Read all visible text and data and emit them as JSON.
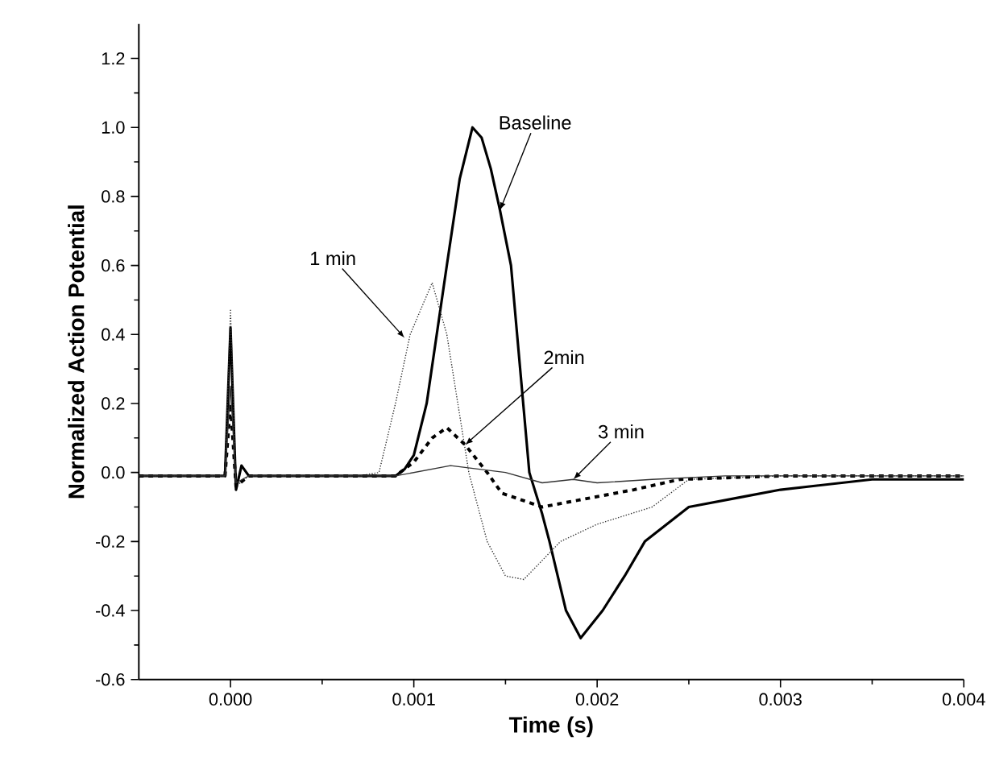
{
  "chart_data": {
    "type": "line",
    "xlabel": "Time (s)",
    "ylabel": "Normalized Action Potential",
    "xlim": [
      -0.0005,
      0.004
    ],
    "ylim": [
      -0.6,
      1.3
    ],
    "xticks": [
      {
        "value": 0,
        "label": "0.000"
      },
      {
        "value": 0.001,
        "label": "0.001"
      },
      {
        "value": 0.002,
        "label": "0.002"
      },
      {
        "value": 0.003,
        "label": "0.003"
      },
      {
        "value": 0.004,
        "label": "0.004"
      }
    ],
    "yticks": [
      -0.6,
      -0.4,
      -0.2,
      {
        "value": 0,
        "label": "0.0"
      },
      0.2,
      0.4,
      0.6,
      0.8,
      {
        "value": 1,
        "label": "1.0"
      },
      1.2
    ],
    "grid": false,
    "marker": "none",
    "series": [
      {
        "color": "#000000",
        "line_style": "solid",
        "x": [
          -0.0005,
          -0.0003,
          -0.0001,
          -3e-05,
          0.0,
          3e-05,
          6e-05,
          0.0001,
          0.0003,
          0.0006,
          0.0009,
          0.00095,
          0.001,
          0.00107,
          0.00118,
          0.00125,
          0.00132,
          0.00137,
          0.00142,
          0.00147,
          0.00153,
          0.00158,
          0.00163,
          0.0017,
          0.00174,
          0.00183,
          0.00191,
          0.00203,
          0.00215,
          0.00226,
          0.0025,
          0.0028,
          0.003,
          0.0035,
          0.004
        ],
        "values": [
          -0.01,
          -0.01,
          -0.01,
          -0.01,
          0.42,
          -0.05,
          0.02,
          -0.01,
          -0.01,
          -0.01,
          -0.01,
          0.01,
          0.05,
          0.2,
          0.6,
          0.85,
          1.0,
          0.97,
          0.88,
          0.76,
          0.6,
          0.3,
          0.0,
          -0.12,
          -0.2,
          -0.4,
          -0.48,
          -0.4,
          -0.3,
          -0.2,
          -0.1,
          -0.07,
          -0.05,
          -0.02,
          -0.02
        ]
      },
      {
        "color": "#333333",
        "line_style": "dotted",
        "x": [
          -0.0005,
          -0.0002,
          -3e-05,
          0.0,
          3e-05,
          0.0001,
          0.0004,
          0.0007,
          0.00081,
          0.0009,
          0.00098,
          0.0011,
          0.00118,
          0.00124,
          0.0013,
          0.0014,
          0.0015,
          0.0016,
          0.0018,
          0.002,
          0.0023,
          0.0025,
          0.003,
          0.004
        ],
        "values": [
          -0.01,
          -0.01,
          -0.01,
          0.47,
          -0.04,
          -0.01,
          -0.01,
          -0.01,
          0.0,
          0.2,
          0.4,
          0.55,
          0.4,
          0.2,
          0.0,
          -0.2,
          -0.3,
          -0.31,
          -0.2,
          -0.15,
          -0.1,
          -0.02,
          -0.01,
          -0.01
        ]
      },
      {
        "color": "#000000",
        "line_style": "dashed",
        "x": [
          -0.0005,
          -0.0002,
          -3e-05,
          0.0,
          3e-05,
          0.0001,
          0.0005,
          0.0009,
          0.001,
          0.0011,
          0.00118,
          0.00128,
          0.0014,
          0.00148,
          0.0017,
          0.0019,
          0.0022,
          0.00245,
          0.003,
          0.004
        ],
        "values": [
          -0.01,
          -0.01,
          -0.01,
          0.2,
          -0.04,
          -0.01,
          -0.01,
          -0.01,
          0.03,
          0.1,
          0.13,
          0.08,
          0.0,
          -0.06,
          -0.1,
          -0.08,
          -0.05,
          -0.02,
          -0.01,
          -0.01
        ]
      },
      {
        "color": "#333333",
        "line_style": "solid",
        "x": [
          -0.0005,
          -0.0002,
          -3e-05,
          0.0,
          3e-05,
          0.0001,
          0.0005,
          0.0009,
          0.0012,
          0.0015,
          0.0017,
          0.00187,
          0.002,
          0.0023,
          0.0027,
          0.003,
          0.004
        ],
        "values": [
          -0.01,
          -0.01,
          -0.01,
          0.25,
          -0.03,
          -0.01,
          -0.01,
          -0.01,
          0.02,
          0.0,
          -0.03,
          -0.02,
          -0.03,
          -0.02,
          -0.01,
          -0.01,
          -0.01
        ]
      }
    ],
    "annotations": [
      {
        "text": "Baseline",
        "x": 0.00147,
        "y": 0.76
      },
      {
        "text": "1 min",
        "x": 0.00095,
        "y": 0.39
      },
      {
        "text": "2min",
        "x": 0.00128,
        "y": 0.08
      },
      {
        "text": "3 min",
        "x": 0.00187,
        "y": -0.02
      }
    ]
  }
}
